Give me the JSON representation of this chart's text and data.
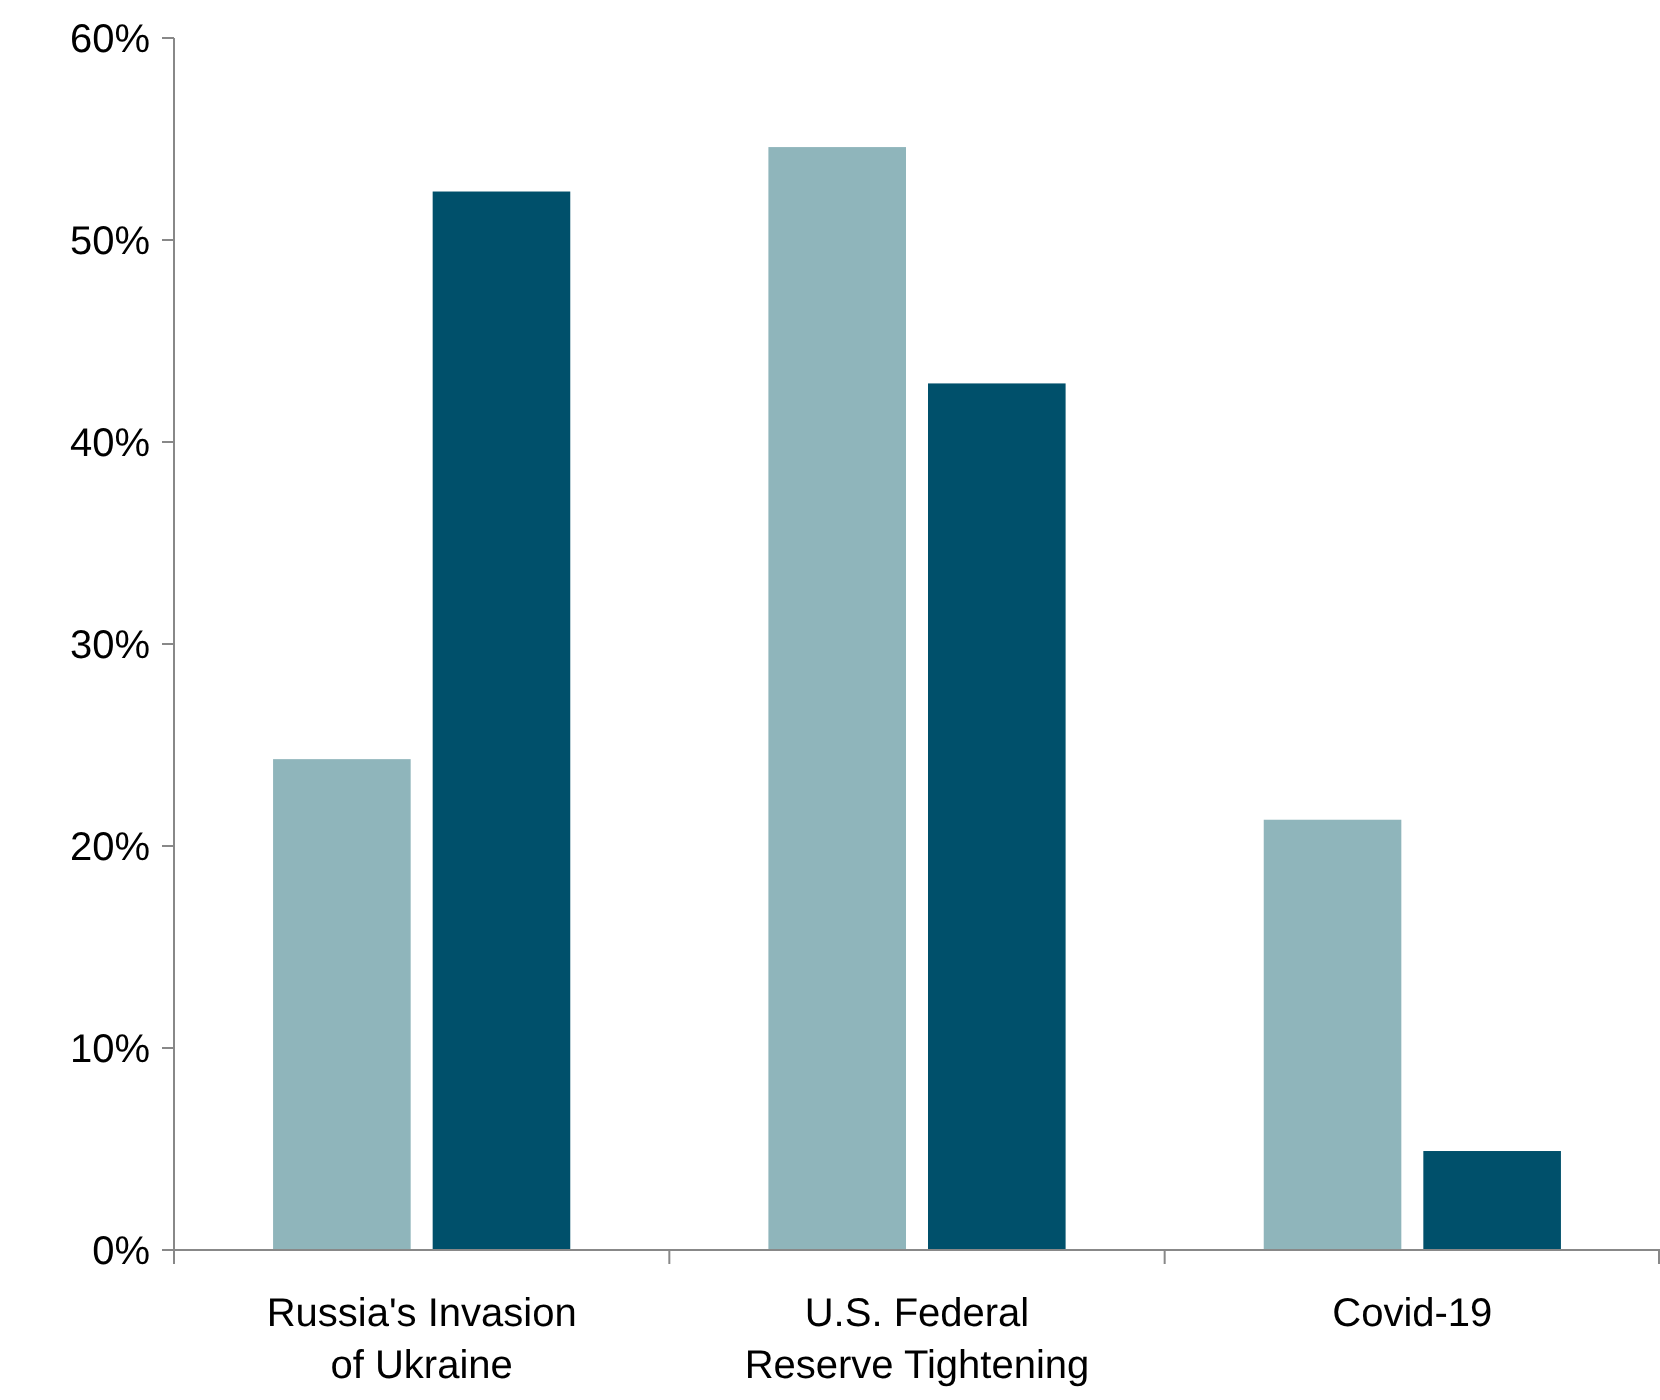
{
  "chart_data": {
    "type": "bar",
    "categories": [
      "Russia's Invasion\nof Ukraine",
      "U.S. Federal\nReserve Tightening",
      "Covid-19"
    ],
    "series": [
      {
        "color": "#8fb5bb",
        "values": [
          24.3,
          54.6,
          21.3
        ]
      },
      {
        "color": "#00506b",
        "values": [
          52.4,
          42.9,
          4.9
        ]
      }
    ],
    "ylim": [
      0,
      60
    ],
    "yticks": [
      {
        "value": 0,
        "label": "0%"
      },
      {
        "value": 10,
        "label": "10%"
      },
      {
        "value": 20,
        "label": "20%"
      },
      {
        "value": 30,
        "label": "30%"
      },
      {
        "value": 40,
        "label": "40%"
      },
      {
        "value": 50,
        "label": "50%"
      },
      {
        "value": 60,
        "label": "60%"
      }
    ],
    "grid": false
  }
}
